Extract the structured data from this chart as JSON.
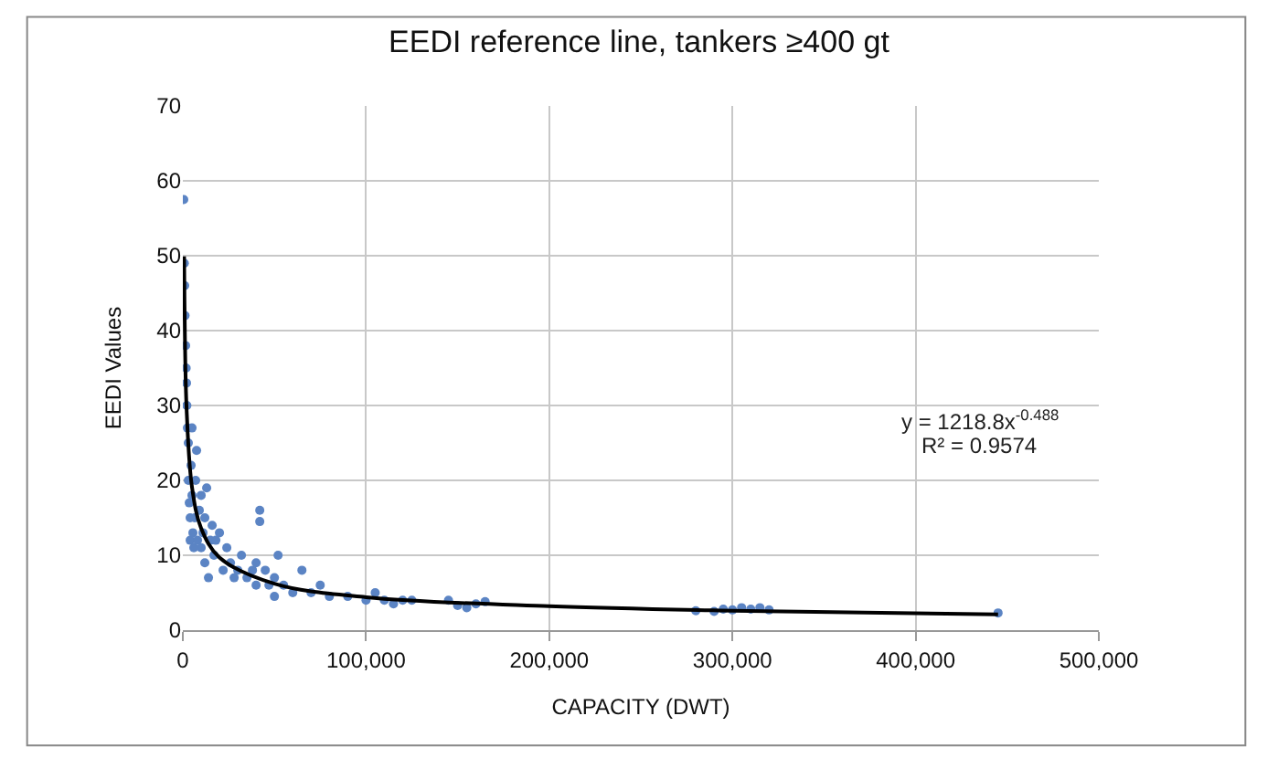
{
  "chart_data": {
    "type": "scatter",
    "title": "EEDI reference line, tankers ≥400 gt",
    "xlabel": "CAPACITY (DWT)",
    "ylabel": "EEDI Values",
    "xlim": [
      0,
      500000
    ],
    "xticks": [
      0,
      {
        "value": 100000,
        "label": "100,000"
      },
      {
        "value": 200000,
        "label": "200,000"
      },
      {
        "value": 300000,
        "label": "300,000"
      },
      {
        "value": 400000,
        "label": "400,000"
      },
      {
        "value": 500000,
        "label": "500,000"
      }
    ],
    "ylim": [
      0,
      70
    ],
    "yticks": [
      0,
      10,
      20,
      30,
      40,
      50,
      60,
      70
    ],
    "grid": true,
    "annotations": [
      "y = 1218.8x$^{-0.488}$",
      "R² = 0.9574"
    ],
    "series": [
      {
        "marker": "circle",
        "color": "#5b84c4",
        "x": [
          500,
          800,
          1000,
          1200,
          1500,
          1800,
          2000,
          2200,
          2500,
          3000,
          3000,
          3500,
          4000,
          4000,
          4500,
          5000,
          5000,
          5500,
          6000,
          6500,
          7000,
          7500,
          8000,
          9000,
          10000,
          10000,
          11000,
          12000,
          12000,
          13000,
          14000,
          15000,
          16000,
          17000,
          18000,
          20000,
          22000,
          24000,
          26000,
          28000,
          30000,
          32000,
          35000,
          38000,
          40000,
          40000,
          42000,
          42000,
          45000,
          47000,
          50000,
          50000,
          52000,
          55000,
          60000,
          65000,
          70000,
          75000,
          80000,
          90000,
          100000,
          105000,
          110000,
          115000,
          120000,
          125000,
          145000,
          150000,
          155000,
          160000,
          165000,
          280000,
          290000,
          295000,
          300000,
          305000,
          310000,
          315000,
          320000,
          445000
        ],
        "values": [
          57.5,
          49,
          46,
          42,
          38,
          35,
          33,
          30,
          27,
          25,
          20,
          17,
          15,
          12,
          22,
          27,
          18,
          13,
          11,
          15,
          20,
          24,
          12,
          16,
          18,
          11,
          13,
          9,
          15,
          19,
          7,
          12,
          14,
          10,
          12,
          13,
          8,
          11,
          9,
          7,
          8,
          10,
          7,
          8,
          9,
          6,
          16,
          14.5,
          8,
          6,
          7,
          4.5,
          10,
          6,
          5,
          8,
          5,
          6,
          4.5,
          4.5,
          4,
          5,
          4,
          3.5,
          4,
          4,
          4,
          3.3,
          3,
          3.5,
          3.8,
          2.6,
          2.5,
          2.8,
          2.7,
          3,
          2.8,
          3,
          2.7,
          2.3
        ]
      },
      {
        "type": "line",
        "marker": "none",
        "color": "#000000",
        "x": [
          700,
          900,
          2000,
          5000,
          10000,
          20000,
          50000,
          100000,
          200000,
          300000,
          445000
        ],
        "values": [
          49.9,
          44.1,
          29.9,
          19.1,
          13.6,
          9.7,
          6.2,
          4.4,
          3.2,
          2.6,
          2.1
        ]
      }
    ]
  }
}
